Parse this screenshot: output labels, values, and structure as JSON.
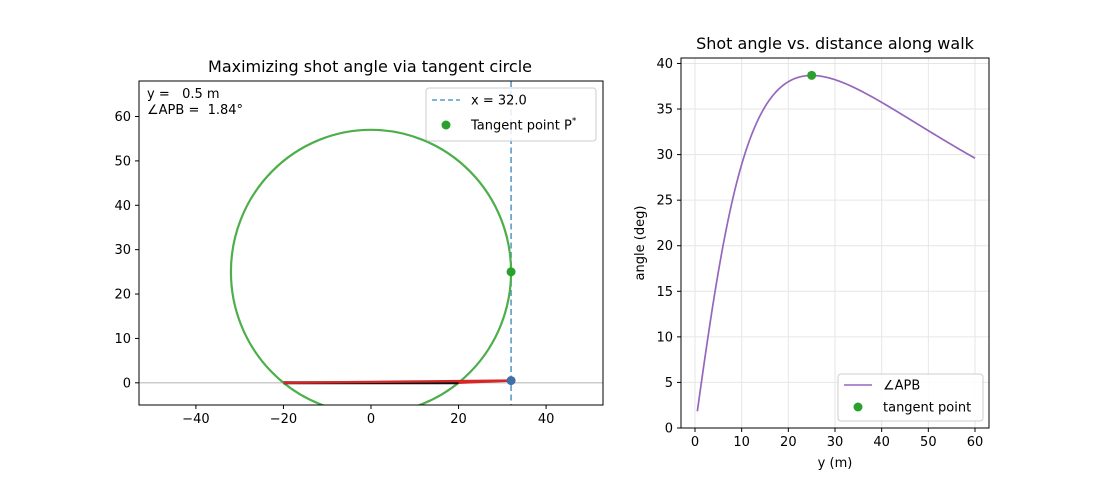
{
  "chart_data": [
    {
      "type": "line",
      "title": "Maximizing shot angle via tangent circle",
      "xlim": [
        -53,
        53
      ],
      "ylim": [
        -5,
        68
      ],
      "xticks": [
        -40,
        -20,
        0,
        20,
        40
      ],
      "yticks": [
        0,
        10,
        20,
        30,
        40,
        50,
        60
      ],
      "grid": false,
      "legend_position": "top-right",
      "readout": {
        "line1": "y =   0.5 m",
        "line2": "∠APB =  1.84°"
      },
      "legend": [
        {
          "label": "x = 32.0",
          "style": "dashed-line",
          "color": "#5b9bc8"
        },
        {
          "label": "Tangent point P",
          "superscript": "*",
          "style": "marker",
          "color": "#2ca02c"
        }
      ],
      "goal_segment": {
        "x": [
          -20,
          20
        ],
        "y": 0
      },
      "walk_line_x": 32,
      "circle": {
        "center": [
          0,
          25
        ],
        "radius": 32
      },
      "tangent_point": {
        "x": 32,
        "y": 25
      },
      "current_point": {
        "x": 32,
        "y": 0.5
      },
      "shot_lines": [
        {
          "from": [
            32,
            0.5
          ],
          "to": [
            -20,
            0
          ]
        },
        {
          "from": [
            32,
            0.5
          ],
          "to": [
            20,
            0
          ]
        }
      ],
      "colors": {
        "circle": "#4daf4a",
        "tangent_point": "#2ca02c",
        "shot_lines": "#d62728",
        "goal": "#111111",
        "current_point": "#3d6fa8",
        "baseline": "#bbbbbb",
        "walk_line": "#5b9bc8"
      }
    },
    {
      "type": "line",
      "title": "Shot angle vs. distance along walk",
      "xlabel": "y (m)",
      "ylabel": "angle (deg)",
      "xlim": [
        -3,
        63
      ],
      "ylim": [
        0,
        40.6
      ],
      "xticks": [
        0,
        10,
        20,
        30,
        40,
        50,
        60
      ],
      "yticks": [
        0,
        5,
        10,
        15,
        20,
        25,
        30,
        35,
        40
      ],
      "grid": true,
      "legend_position": "bottom-right",
      "series": [
        {
          "name": "∠APB",
          "color": "#9467bd",
          "function": "angle_APB",
          "x_range": [
            0.5,
            60
          ]
        }
      ],
      "tangent_point": {
        "name": "tangent point",
        "x": 25,
        "y": 38.7,
        "color": "#2ca02c"
      },
      "geometry": {
        "half_goal_width": 20,
        "walk_x": 32
      }
    }
  ]
}
